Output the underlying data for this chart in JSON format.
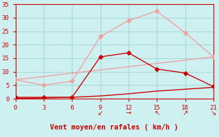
{
  "line1_x": [
    0,
    3,
    6,
    9,
    12,
    15,
    18,
    21
  ],
  "line1_y": [
    7.0,
    5.0,
    6.5,
    23.0,
    29.0,
    32.5,
    24.5,
    15.5
  ],
  "line2_x": [
    0,
    3,
    6,
    9,
    12,
    15,
    18,
    21
  ],
  "line2_y": [
    0.5,
    0.5,
    0.5,
    15.5,
    17.0,
    11.0,
    9.5,
    4.5
  ],
  "line3_x": [
    0,
    21
  ],
  "line3_y": [
    7.0,
    15.5
  ],
  "line4_x": [
    0,
    3,
    6,
    9,
    12,
    15,
    18,
    21
  ],
  "line4_y": [
    0.0,
    0.3,
    0.5,
    1.0,
    1.8,
    2.8,
    3.5,
    4.2
  ],
  "arrows_x": [
    9,
    12,
    15,
    18,
    21
  ],
  "arrows": [
    "↙",
    "→",
    "↖",
    "↗",
    "↘"
  ],
  "xlabel": "Vent moyen/en rafales ( km/h )",
  "xlim": [
    0,
    21
  ],
  "ylim": [
    0,
    35
  ],
  "xticks": [
    0,
    3,
    6,
    9,
    12,
    15,
    18,
    21
  ],
  "yticks": [
    0,
    5,
    10,
    15,
    20,
    25,
    30,
    35
  ],
  "bg_color": "#cff0f0",
  "grid_color": "#b0e0e0",
  "line1_color": "#f0a0a0",
  "line2_color": "#cc0000",
  "line3_color": "#f0a0a0",
  "line4_color": "#cc0000",
  "marker_size": 3
}
